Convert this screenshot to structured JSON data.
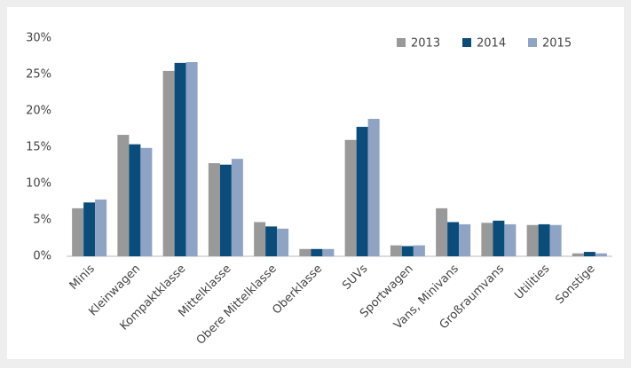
{
  "chart_data": {
    "type": "bar",
    "categories": [
      "Minis",
      "Kleinwagen",
      "Kompaktklasse",
      "Mittelklasse",
      "Obere Mittelklasse",
      "Oberklasse",
      "SUVs",
      "Sportwagen",
      "Vans, Minivans",
      "Großraumvans",
      "Utilities",
      "Sonstige"
    ],
    "series": [
      {
        "name": "2013",
        "color": "#999999",
        "values": [
          6.6,
          16.7,
          25.5,
          12.8,
          4.7,
          1.0,
          16.0,
          1.5,
          6.6,
          4.6,
          4.3,
          0.4
        ]
      },
      {
        "name": "2014",
        "color": "#0b4d7a",
        "values": [
          7.4,
          15.4,
          26.6,
          12.6,
          4.1,
          1.0,
          17.8,
          1.4,
          4.7,
          4.9,
          4.4,
          0.6
        ]
      },
      {
        "name": "2015",
        "color": "#8fa3c4",
        "values": [
          7.8,
          14.9,
          26.7,
          13.4,
          3.8,
          1.0,
          18.9,
          1.5,
          4.4,
          4.4,
          4.3,
          0.4
        ]
      }
    ],
    "ylim": [
      0,
      30
    ],
    "yticks": [
      {
        "value": 0,
        "label": "0%"
      },
      {
        "value": 5,
        "label": "5%"
      },
      {
        "value": 10,
        "label": "10%"
      },
      {
        "value": 15,
        "label": "15%"
      },
      {
        "value": 20,
        "label": "20%"
      },
      {
        "value": 25,
        "label": "25%"
      },
      {
        "value": 30,
        "label": "30%"
      }
    ],
    "grid": false,
    "legend": "upper right"
  }
}
